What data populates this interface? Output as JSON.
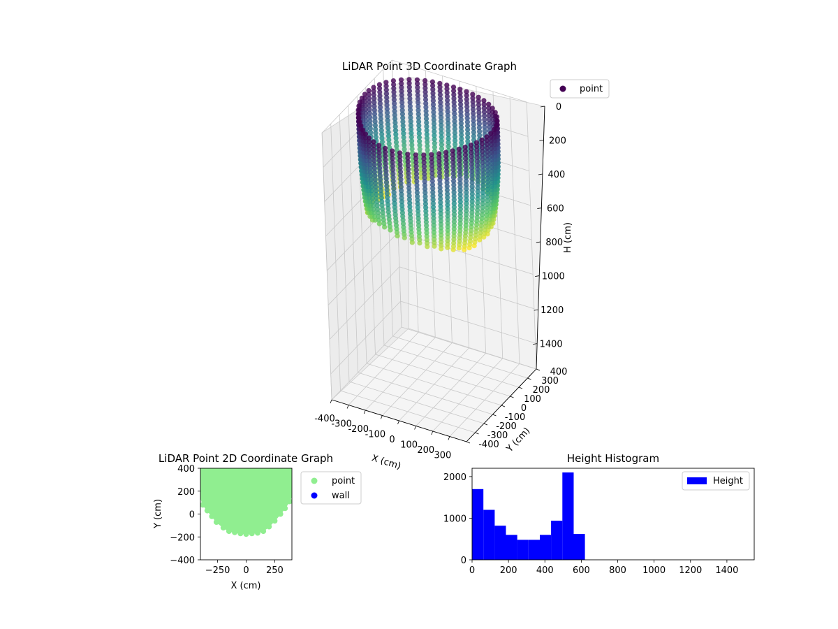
{
  "chart_data": [
    {
      "type": "scatter",
      "projection": "3d",
      "title": "LiDAR Point 3D Coordinate Graph",
      "xlabel": "X (cm)",
      "ylabel": "Y (cm)",
      "zlabel": "H (cm)",
      "xlim": [
        -400,
        400
      ],
      "ylim": [
        -400,
        400
      ],
      "zlim": [
        1550,
        0
      ],
      "x_ticks": [
        "-400",
        "-300",
        "-200",
        "-100",
        "0",
        "100",
        "200",
        "300"
      ],
      "y_ticks": [
        "-400",
        "-300",
        "-200",
        "-100",
        "0",
        "100",
        "200",
        "300",
        "400"
      ],
      "z_ticks": [
        "0",
        "200",
        "400",
        "600",
        "800",
        "1000",
        "1200",
        "1400"
      ],
      "colormap": "viridis",
      "legend": {
        "position": "top-right",
        "entries": [
          {
            "name": "point",
            "color": "#440154"
          }
        ]
      },
      "description_of_points": {
        "shape": "open-topped bowl / cylindrical wall",
        "wall_radius_cm_approx": 370,
        "height_range_cm": [
          0,
          620
        ]
      }
    },
    {
      "type": "scatter",
      "title": "LiDAR Point 2D Coordinate Graph",
      "xlabel": "X (cm)",
      "ylabel": "Y (cm)",
      "xlim": [
        -400,
        400
      ],
      "ylim": [
        -400,
        400
      ],
      "x_ticks": [
        "-250",
        "0",
        "250"
      ],
      "y_ticks": [
        "400",
        "200",
        "0",
        "-200",
        "-400"
      ],
      "legend": {
        "position": "outside-right",
        "entries": [
          {
            "name": "point",
            "color": "#90ee90"
          },
          {
            "name": "wall",
            "color": "#0000ff"
          }
        ]
      },
      "region_boundary": {
        "x": [
          -400,
          -380,
          -340,
          -300,
          -260,
          -200,
          -150,
          -100,
          -50,
          0,
          50,
          100,
          150,
          200,
          250,
          300,
          340,
          380,
          400
        ],
        "y_lower": [
          150,
          80,
          30,
          -20,
          -70,
          -120,
          -150,
          -160,
          -170,
          -175,
          -170,
          -165,
          -150,
          -110,
          -60,
          0,
          50,
          110,
          160
        ],
        "y_upper": 400
      }
    },
    {
      "type": "histogram",
      "title": "Height Histogram",
      "xlim": [
        0,
        1550
      ],
      "ylim": [
        0,
        2200
      ],
      "x_ticks": [
        "0",
        "200",
        "400",
        "600",
        "800",
        "1000",
        "1200",
        "1400"
      ],
      "y_ticks": [
        "0",
        "1000",
        "2000"
      ],
      "bar_color": "#0000ff",
      "legend": {
        "position": "top-right",
        "entries": [
          {
            "name": "Height",
            "color": "#0000ff"
          }
        ]
      },
      "bins": [
        {
          "start": 0,
          "end": 62,
          "count": 1700
        },
        {
          "start": 62,
          "end": 124,
          "count": 1200
        },
        {
          "start": 124,
          "end": 186,
          "count": 820
        },
        {
          "start": 186,
          "end": 248,
          "count": 600
        },
        {
          "start": 248,
          "end": 310,
          "count": 480
        },
        {
          "start": 310,
          "end": 372,
          "count": 480
        },
        {
          "start": 372,
          "end": 434,
          "count": 600
        },
        {
          "start": 434,
          "end": 496,
          "count": 940
        },
        {
          "start": 496,
          "end": 558,
          "count": 2100
        },
        {
          "start": 558,
          "end": 620,
          "count": 620
        }
      ]
    }
  ]
}
